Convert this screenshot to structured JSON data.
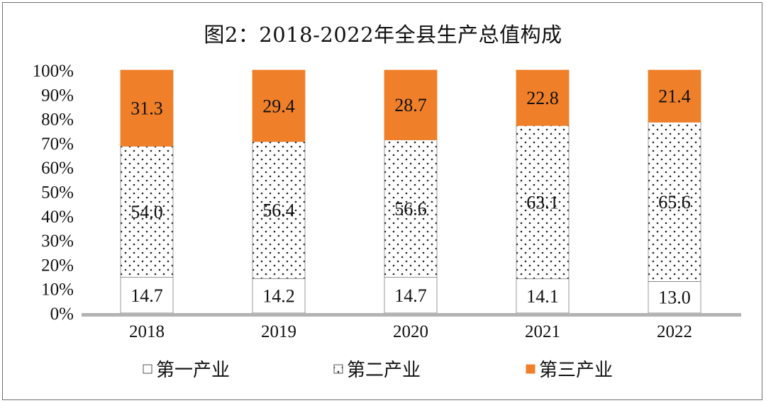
{
  "chart_data": {
    "type": "bar",
    "stacked": "percent",
    "title": "图2：2018-2022年全县生产总值构成",
    "categories": [
      "2018",
      "2019",
      "2020",
      "2021",
      "2022"
    ],
    "series": [
      {
        "name": "第一产业",
        "values": [
          14.7,
          14.2,
          14.7,
          14.1,
          13.0
        ],
        "color": "#ffffff",
        "pattern": "none"
      },
      {
        "name": "第二产业",
        "values": [
          54.0,
          56.4,
          56.6,
          63.1,
          65.6
        ],
        "color": "#ffffff",
        "pattern": "dots"
      },
      {
        "name": "第三产业",
        "values": [
          31.3,
          29.4,
          28.7,
          22.8,
          21.4
        ],
        "color": "#F07F2A",
        "pattern": "none"
      }
    ],
    "ylim": [
      0,
      100
    ],
    "yticks": [
      "0%",
      "10%",
      "20%",
      "30%",
      "40%",
      "50%",
      "60%",
      "70%",
      "80%",
      "90%",
      "100%"
    ],
    "grid": false,
    "legend_position": "bottom",
    "data_labels": true
  },
  "colors": {
    "axis": "#B3B3B3",
    "bar_outline": "#7F7F7F",
    "tertiary": "#F07F2A",
    "dot": "#222222"
  }
}
